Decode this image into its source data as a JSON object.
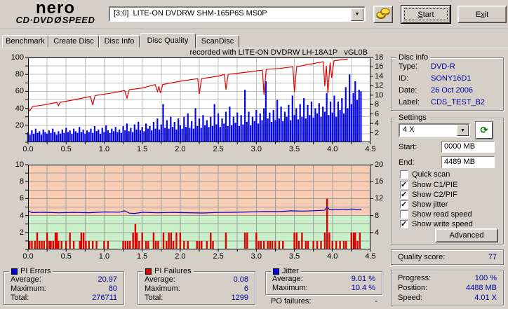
{
  "logo": {
    "line1": "nero",
    "line2_left": "CD·DVD",
    "disc_glyph": "Ø",
    "line2_right": "SPEED"
  },
  "toolbar": {
    "drive_select": {
      "value": "[3:0]  LITE-ON DVDRW SHM-165P6S MS0P"
    },
    "start_button": {
      "key": "S",
      "rest": "tart"
    },
    "exit_button": {
      "pre": "E",
      "key": "x",
      "rest": "it"
    }
  },
  "tabs": [
    {
      "label": "Benchmark",
      "active": false
    },
    {
      "label": "Create Disc",
      "active": false
    },
    {
      "label": "Disc Info",
      "active": false
    },
    {
      "label": "Disc Quality",
      "active": true
    },
    {
      "label": "ScanDisc",
      "active": false
    }
  ],
  "chart_data": [
    {
      "type": "bar",
      "title": "recorded with LITE-ON DVDRW LH-18A1P   vGL0B",
      "x_range": [
        0,
        4.5
      ],
      "x_minor_step": 0.25,
      "x_tick_labels": [
        "0.0",
        "0.5",
        "1.0",
        "1.5",
        "2.0",
        "2.5",
        "3.0",
        "3.5",
        "4.0",
        "4.5"
      ],
      "left_axis": {
        "range": [
          0,
          100
        ],
        "minor_step": 10,
        "labels": [
          100,
          80,
          60,
          40,
          20
        ]
      },
      "right_axis": {
        "range": [
          0,
          18
        ],
        "labels": [
          18,
          16,
          14,
          12,
          10,
          8,
          6,
          4,
          2
        ]
      },
      "series": [
        {
          "name": "pi-errors",
          "type": "bar",
          "color": "#0404e8",
          "x_start": 0,
          "x_step": 0.025,
          "values": [
            12,
            9,
            14,
            10,
            16,
            11,
            13,
            9,
            15,
            12,
            10,
            14,
            11,
            16,
            12,
            9,
            13,
            10,
            15,
            11,
            17,
            12,
            14,
            10,
            16,
            13,
            11,
            18,
            12,
            15,
            10,
            14,
            12,
            16,
            11,
            19,
            13,
            15,
            10,
            17,
            12,
            20,
            14,
            11,
            16,
            13,
            18,
            12,
            15,
            11,
            19,
            14,
            22,
            13,
            17,
            12,
            21,
            15,
            24,
            14,
            18,
            13,
            22,
            16,
            19,
            14,
            24,
            16,
            28,
            15,
            21,
            45,
            17,
            26,
            16,
            30,
            18,
            24,
            15,
            28,
            20,
            16,
            30,
            18,
            34,
            17,
            25,
            16,
            40,
            19,
            28,
            17,
            32,
            20,
            26,
            18,
            30,
            19,
            45,
            21,
            34,
            18,
            28,
            22,
            36,
            19,
            42,
            20,
            30,
            23,
            35,
            19,
            32,
            21,
            62,
            24,
            36,
            20,
            30,
            25,
            38,
            22,
            34,
            26,
            40,
            72,
            28,
            35,
            24,
            38,
            26,
            50,
            28,
            42,
            25,
            36,
            30,
            44,
            26,
            55,
            32,
            40,
            27,
            45,
            30,
            52,
            28,
            44,
            32,
            48,
            29,
            40,
            34,
            46,
            30,
            42,
            36,
            58,
            32,
            48,
            35,
            55,
            30,
            48,
            38,
            52,
            34,
            65,
            40,
            80,
            45,
            58,
            72,
            50,
            62,
            60
          ]
        },
        {
          "name": "write-speed",
          "type": "line",
          "color": "#e00000",
          "points": [
            [
              0.0,
              40
            ],
            [
              0.02,
              37
            ],
            [
              0.06,
              42
            ],
            [
              0.2,
              44
            ],
            [
              0.38,
              47
            ],
            [
              0.4,
              43
            ],
            [
              0.42,
              47
            ],
            [
              0.6,
              50
            ],
            [
              0.82,
              54
            ],
            [
              0.85,
              44
            ],
            [
              0.88,
              55
            ],
            [
              1.1,
              58
            ],
            [
              1.27,
              61
            ],
            [
              1.3,
              52
            ],
            [
              1.33,
              62
            ],
            [
              1.5,
              64
            ],
            [
              1.67,
              68
            ],
            [
              1.7,
              60
            ],
            [
              1.72,
              66
            ],
            [
              1.74,
              58
            ],
            [
              1.77,
              68
            ],
            [
              2.0,
              72
            ],
            [
              2.23,
              75
            ],
            [
              2.25,
              57
            ],
            [
              2.28,
              75
            ],
            [
              2.5,
              78
            ],
            [
              2.58,
              80
            ],
            [
              2.6,
              62
            ],
            [
              2.63,
              80
            ],
            [
              2.9,
              83
            ],
            [
              3.08,
              85
            ],
            [
              3.1,
              56
            ],
            [
              3.13,
              86
            ],
            [
              3.3,
              87
            ],
            [
              3.48,
              89
            ],
            [
              3.5,
              59
            ],
            [
              3.53,
              89
            ],
            [
              3.7,
              92
            ],
            [
              3.88,
              95
            ],
            [
              3.9,
              66
            ],
            [
              3.92,
              90
            ],
            [
              3.94,
              58
            ],
            [
              3.97,
              94
            ],
            [
              3.99,
              76
            ],
            [
              4.02,
              96
            ],
            [
              4.1,
              97
            ],
            [
              4.2,
              98
            ]
          ]
        }
      ]
    },
    {
      "type": "bar",
      "title": "",
      "x_range": [
        0,
        4.5
      ],
      "x_minor_step": 0.25,
      "x_tick_labels": [
        "0.0",
        "0.5",
        "1.0",
        "1.5",
        "2.0",
        "2.5",
        "3.0",
        "3.5",
        "4.0",
        "4.5"
      ],
      "left_axis": {
        "range": [
          0,
          10
        ],
        "minor_step": 1,
        "labels": [
          10,
          8,
          6,
          4,
          2
        ]
      },
      "right_axis": {
        "range": [
          0,
          20
        ],
        "labels": [
          20,
          16,
          12,
          8,
          4
        ]
      },
      "zones": [
        {
          "from": 0,
          "to": 4,
          "color": "#c9f0c9"
        },
        {
          "from": 4,
          "to": 10,
          "color": "#f6cdb4"
        }
      ],
      "series": [
        {
          "name": "pi-failures",
          "type": "bar",
          "color": "#e00000",
          "points": [
            [
              0.02,
              1
            ],
            [
              0.05,
              1
            ],
            [
              0.09,
              1
            ],
            [
              0.12,
              2
            ],
            [
              0.15,
              1
            ],
            [
              0.18,
              1
            ],
            [
              0.21,
              1
            ],
            [
              0.25,
              2
            ],
            [
              0.28,
              1
            ],
            [
              0.3,
              1
            ],
            [
              0.33,
              1
            ],
            [
              0.36,
              2
            ],
            [
              0.38,
              2
            ],
            [
              0.4,
              1
            ],
            [
              0.44,
              1
            ],
            [
              0.5,
              1
            ],
            [
              0.55,
              2
            ],
            [
              0.6,
              1
            ],
            [
              0.68,
              1
            ],
            [
              0.7,
              2
            ],
            [
              0.73,
              2
            ],
            [
              0.76,
              1
            ],
            [
              0.8,
              1
            ],
            [
              0.85,
              1
            ],
            [
              0.9,
              1
            ],
            [
              1.0,
              1
            ],
            [
              1.05,
              1
            ],
            [
              1.25,
              1
            ],
            [
              1.28,
              1
            ],
            [
              1.31,
              1
            ],
            [
              1.34,
              1
            ],
            [
              1.38,
              2
            ],
            [
              1.41,
              3
            ],
            [
              1.43,
              2
            ],
            [
              1.46,
              1
            ],
            [
              1.5,
              2
            ],
            [
              1.55,
              1
            ],
            [
              1.58,
              1
            ],
            [
              1.65,
              2
            ],
            [
              1.68,
              1
            ],
            [
              1.71,
              1
            ],
            [
              1.78,
              2
            ],
            [
              1.82,
              1
            ],
            [
              1.85,
              2
            ],
            [
              1.88,
              2
            ],
            [
              1.91,
              1
            ],
            [
              1.95,
              2
            ],
            [
              2.0,
              2
            ],
            [
              2.05,
              1
            ],
            [
              2.1,
              1
            ],
            [
              2.22,
              1
            ],
            [
              2.25,
              1
            ],
            [
              2.28,
              1
            ],
            [
              2.35,
              1
            ],
            [
              2.4,
              2
            ],
            [
              2.43,
              1
            ],
            [
              2.6,
              2
            ],
            [
              2.85,
              2
            ],
            [
              2.88,
              2
            ],
            [
              3.0,
              2
            ],
            [
              3.03,
              1
            ],
            [
              3.06,
              1
            ],
            [
              3.1,
              1
            ],
            [
              3.15,
              1
            ],
            [
              3.18,
              1
            ],
            [
              3.21,
              1
            ],
            [
              3.25,
              1
            ],
            [
              3.3,
              1
            ],
            [
              3.35,
              1
            ],
            [
              3.5,
              2
            ],
            [
              3.53,
              2
            ],
            [
              3.56,
              1
            ],
            [
              3.6,
              2
            ],
            [
              3.65,
              1
            ],
            [
              3.68,
              1
            ],
            [
              3.75,
              1
            ],
            [
              3.8,
              1
            ],
            [
              3.85,
              1
            ],
            [
              3.9,
              2
            ],
            [
              3.93,
              6
            ],
            [
              3.96,
              2
            ],
            [
              4.0,
              1
            ],
            [
              4.05,
              1
            ],
            [
              4.1,
              1
            ],
            [
              4.15,
              1
            ],
            [
              4.18,
              1
            ],
            [
              4.25,
              2
            ],
            [
              4.28,
              2
            ],
            [
              4.3,
              2
            ],
            [
              4.33,
              1
            ],
            [
              4.36,
              2
            ]
          ]
        },
        {
          "name": "jitter",
          "type": "line",
          "color": "#0000c0",
          "points": [
            [
              0.0,
              4.55
            ],
            [
              0.05,
              4.35
            ],
            [
              0.2,
              4.38
            ],
            [
              0.4,
              4.32
            ],
            [
              0.6,
              4.36
            ],
            [
              0.8,
              4.33
            ],
            [
              1.0,
              4.42
            ],
            [
              1.2,
              4.4
            ],
            [
              1.27,
              4.55
            ],
            [
              1.33,
              4.28
            ],
            [
              1.4,
              4.25
            ],
            [
              1.5,
              4.38
            ],
            [
              1.7,
              4.32
            ],
            [
              1.9,
              4.36
            ],
            [
              2.1,
              4.33
            ],
            [
              2.3,
              4.3
            ],
            [
              2.5,
              4.36
            ],
            [
              2.7,
              4.38
            ],
            [
              2.9,
              4.42
            ],
            [
              3.1,
              4.48
            ],
            [
              3.3,
              4.46
            ],
            [
              3.45,
              4.55
            ],
            [
              3.6,
              4.52
            ],
            [
              3.75,
              4.56
            ],
            [
              3.9,
              4.62
            ],
            [
              3.93,
              5.05
            ],
            [
              3.96,
              4.72
            ],
            [
              4.05,
              4.68
            ],
            [
              4.15,
              4.7
            ],
            [
              4.25,
              4.76
            ],
            [
              4.32,
              4.72
            ],
            [
              4.38,
              4.74
            ]
          ]
        }
      ]
    }
  ],
  "disc_info": {
    "legend": "Disc info",
    "rows": [
      {
        "label": "Type:",
        "value": "DVD-R"
      },
      {
        "label": "ID:",
        "value": "SONY16D1"
      },
      {
        "label": "Date:",
        "value": "26 Oct 2006"
      },
      {
        "label": "Label:",
        "value": "CDS_TEST_B2"
      }
    ]
  },
  "settings": {
    "legend": "Settings",
    "speed": {
      "value": "4 X"
    },
    "refresh_icon": "⟳",
    "start": {
      "label": "Start:",
      "value": "0000 MB"
    },
    "end": {
      "label": "End:",
      "value": "4489 MB"
    },
    "checkboxes": [
      {
        "label": "Quick scan",
        "checked": false
      },
      {
        "label": "Show C1/PIE",
        "checked": true
      },
      {
        "label": "Show C2/PIF",
        "checked": true
      },
      {
        "label": "Show jitter",
        "checked": true
      },
      {
        "label": "Show read speed",
        "checked": false
      },
      {
        "label": "Show write speed",
        "checked": true
      }
    ],
    "advanced_label": "Advanced"
  },
  "quality": {
    "label": "Quality score:",
    "value": "77"
  },
  "stats": {
    "pi_errors": {
      "legend": "PI Errors",
      "color": "#0404e8",
      "rows": [
        {
          "label": "Average:",
          "value": "20.97"
        },
        {
          "label": "Maximum:",
          "value": "80"
        },
        {
          "label": "Total:",
          "value": "276711"
        }
      ]
    },
    "pi_failures": {
      "legend": "PI Failures",
      "color": "#e00000",
      "rows": [
        {
          "label": "Average:",
          "value": "0.08"
        },
        {
          "label": "Maximum:",
          "value": "6"
        },
        {
          "label": "Total:",
          "value": "1299"
        }
      ]
    },
    "jitter": {
      "legend": "Jitter",
      "color": "#0404e8",
      "rows": [
        {
          "label": "Average:",
          "value": "9.01 %"
        },
        {
          "label": "Maximum:",
          "value": "10.4 %"
        }
      ]
    },
    "po_failures": {
      "label": "PO failures:",
      "value": "-"
    }
  },
  "status": {
    "rows": [
      {
        "label": "Progress:",
        "value": "100 %"
      },
      {
        "label": "Position:",
        "value": "4488 MB"
      },
      {
        "label": "Speed:",
        "value": "4.01 X"
      }
    ]
  }
}
